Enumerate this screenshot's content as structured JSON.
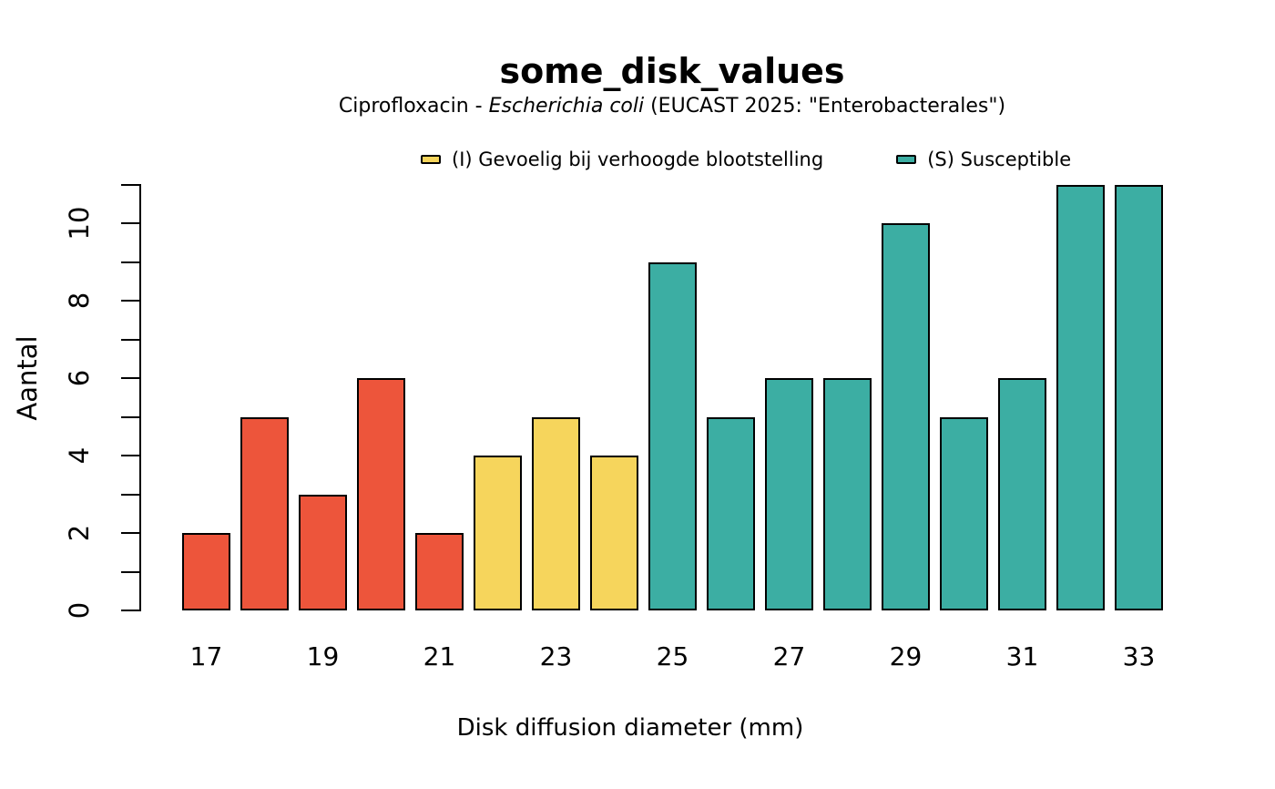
{
  "title": "some_disk_values",
  "subtitle": {
    "prefix": "Ciprofloxacin - ",
    "italic": "Escherichia coli",
    "suffix": " (EUCAST 2025: \"Enterobacterales\")"
  },
  "legend": [
    {
      "name": "intermediate",
      "label": "(I) Gevoelig bij verhoogde blootstelling",
      "color": "#F6D55C"
    },
    {
      "name": "susceptible",
      "label": "(S) Susceptible",
      "color": "#3CAEA3"
    }
  ],
  "xlabel": "Disk diffusion diameter (mm)",
  "ylabel": "Aantal",
  "chart_data": {
    "type": "bar",
    "title": "some_disk_values",
    "subtitle": "Ciprofloxacin - Escherichia coli (EUCAST 2025: \"Enterobacterales\")",
    "x": [
      17,
      18,
      19,
      20,
      21,
      22,
      23,
      24,
      25,
      26,
      27,
      28,
      29,
      30,
      31,
      32,
      33
    ],
    "values": [
      2,
      5,
      3,
      6,
      2,
      4,
      5,
      4,
      9,
      5,
      6,
      6,
      10,
      5,
      6,
      11,
      11
    ],
    "sir": [
      "R",
      "R",
      "R",
      "R",
      "R",
      "I",
      "I",
      "I",
      "S",
      "S",
      "S",
      "S",
      "S",
      "S",
      "S",
      "S",
      "S"
    ],
    "color_map": {
      "R": "#ED553B",
      "I": "#F6D55C",
      "S": "#3CAEA3"
    },
    "x_tick_labels": [
      17,
      19,
      21,
      23,
      25,
      27,
      29,
      31,
      33
    ],
    "y_ticks": [
      0,
      1,
      2,
      3,
      4,
      5,
      6,
      7,
      8,
      9,
      10,
      11
    ],
    "y_tick_labels": [
      0,
      2,
      4,
      6,
      8,
      10
    ],
    "xlabel": "Disk diffusion diameter (mm)",
    "ylabel": "Aantal",
    "ylim": [
      0,
      11
    ],
    "grid": false,
    "legend_position": "top",
    "legend_entries_visible": [
      "(I) Gevoelig bij verhoogde blootstelling",
      "(S) Susceptible"
    ],
    "bar_border_color": "#000000"
  }
}
